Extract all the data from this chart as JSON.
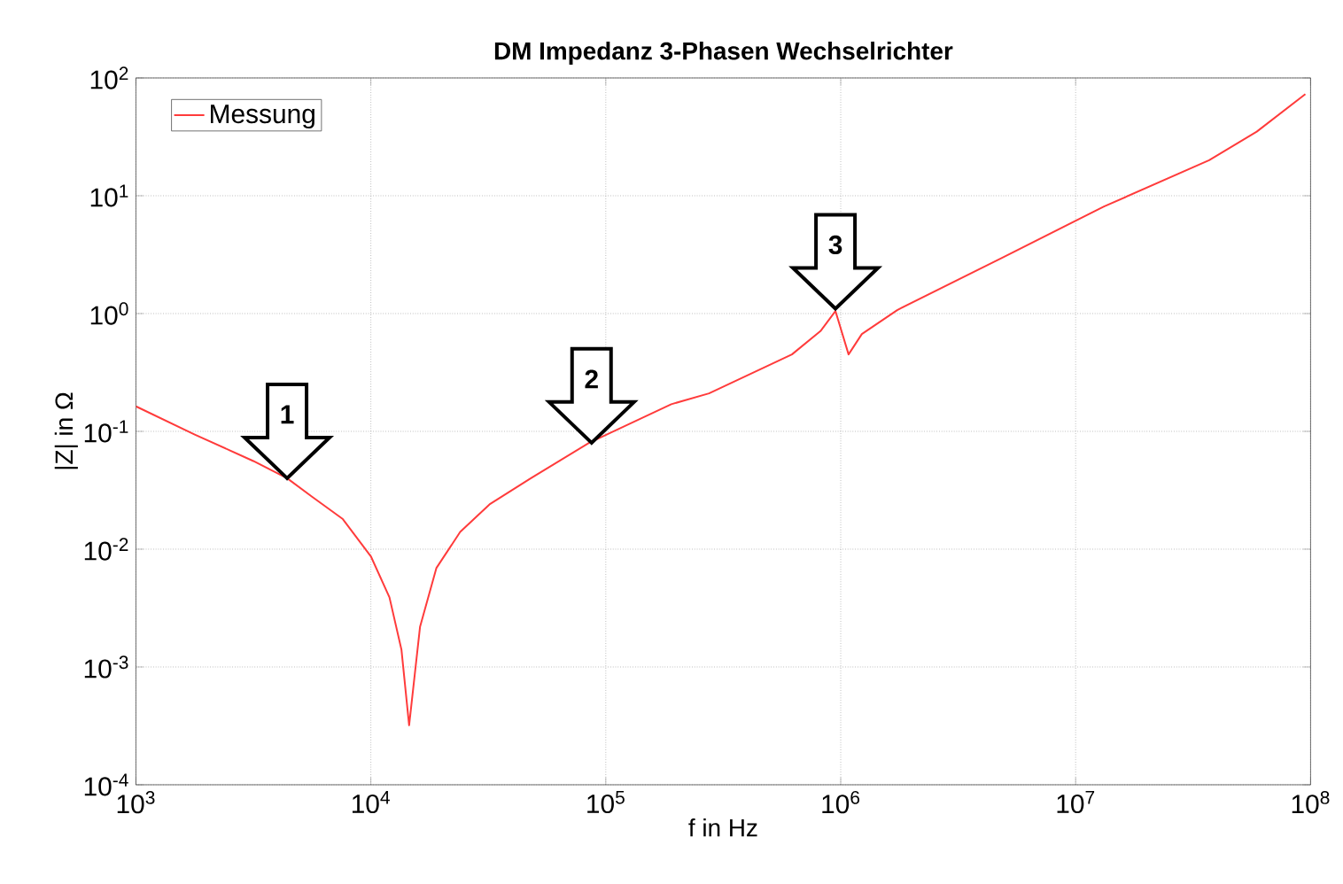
{
  "chart_data": {
    "type": "line",
    "title": "DM Impedanz 3-Phasen Wechselrichter",
    "xlabel": "f in Hz",
    "ylabel": "|Z| in Ω",
    "log": "xy",
    "grid": true,
    "legend": "top left",
    "line_style": "solid",
    "xlim": [
      1000,
      100000000
    ],
    "ylim": [
      0.0001,
      100
    ],
    "xticks": [
      {
        "value": 1000,
        "label": "10$^{3}$"
      },
      {
        "value": 10000,
        "label": "10$^{4}$"
      },
      {
        "value": 100000,
        "label": "10$^{5}$"
      },
      {
        "value": 1000000,
        "label": "10$^{6}$"
      },
      {
        "value": 10000000,
        "label": "10$^{7}$"
      },
      {
        "value": 100000000,
        "label": "10$^{8}$"
      }
    ],
    "yticks": [
      {
        "value": 0.0001,
        "label": "10$^{-4}$"
      },
      {
        "value": 0.001,
        "label": "10$^{-3}$"
      },
      {
        "value": 0.01,
        "label": "10$^{-2}$"
      },
      {
        "value": 0.1,
        "label": "10$^{-1}$"
      },
      {
        "value": 1,
        "label": "10$^{0}$"
      },
      {
        "value": 10,
        "label": "10$^{1}$"
      },
      {
        "value": 100,
        "label": "10$^{2}$"
      }
    ],
    "series": [
      {
        "name": "Messung",
        "color": "#ff3b3b",
        "x": [
          1000,
          1780,
          3160,
          4400,
          5600,
          7600,
          10000,
          12000,
          13500,
          14550,
          16200,
          19000,
          24000,
          32000,
          48000,
          85000,
          190000,
          275000,
          620000,
          820000,
          950000,
          1080000,
          1230000,
          1740000,
          4900000,
          13200000,
          37000000,
          59000000,
          95000000
        ],
        "values": [
          0.163,
          0.094,
          0.056,
          0.04,
          0.028,
          0.018,
          0.0087,
          0.0039,
          0.0014,
          0.00032,
          0.0022,
          0.0069,
          0.014,
          0.024,
          0.04,
          0.08,
          0.17,
          0.21,
          0.45,
          0.71,
          1.05,
          0.45,
          0.67,
          1.07,
          3.0,
          8.1,
          20,
          35,
          73
        ]
      }
    ],
    "annotations": [
      {
        "text": "1",
        "x": 4400,
        "y": 0.04
      },
      {
        "text": "2",
        "x": 87000,
        "y": 0.08
      },
      {
        "text": "3",
        "x": 950000,
        "y": 1.1
      }
    ]
  }
}
